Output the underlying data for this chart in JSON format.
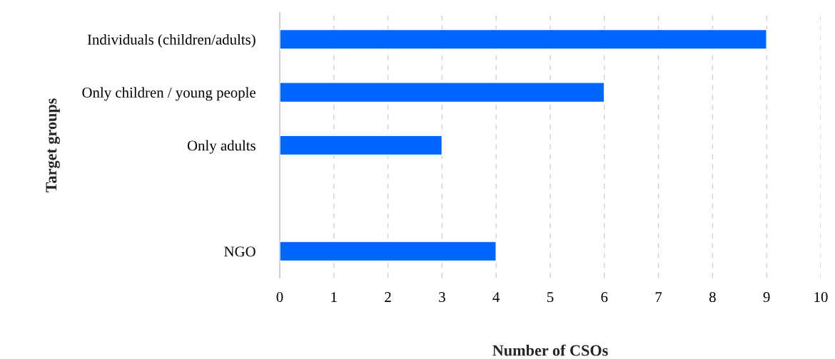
{
  "chart_data": {
    "type": "bar",
    "orientation": "horizontal",
    "xlabel": "Number of CSOs",
    "ylabel": "Target groups",
    "categories": [
      "Individuals (children/adults)",
      "Only children / young people",
      "Only adults",
      null,
      "NGO"
    ],
    "values": [
      9,
      6,
      3,
      null,
      4
    ],
    "color": "#0066ff",
    "xlim": [
      0,
      10
    ],
    "xticks": [
      0,
      1,
      2,
      3,
      4,
      5,
      6,
      7,
      8,
      9,
      10
    ],
    "grid": "x",
    "legend": false
  }
}
